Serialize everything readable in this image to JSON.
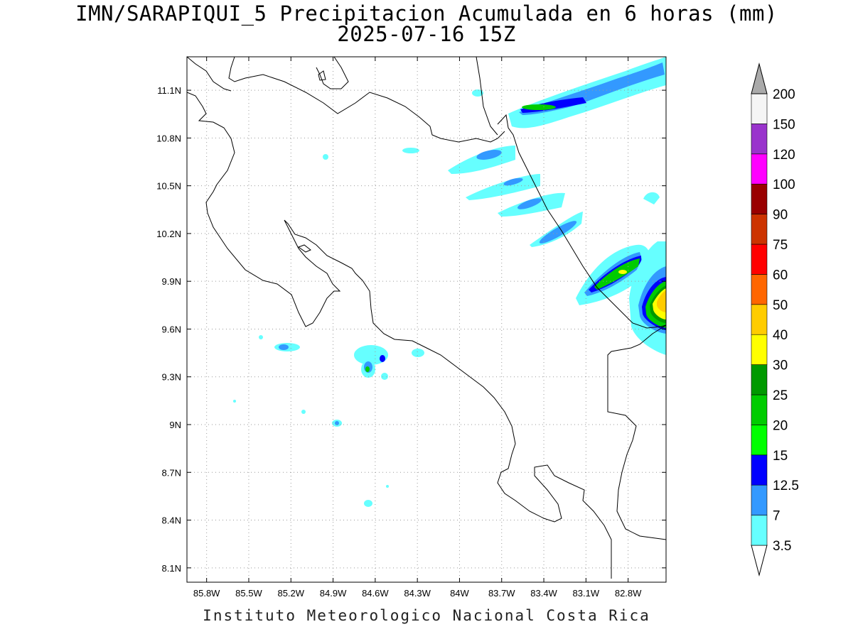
{
  "title": {
    "line1": "IMN/SARAPIQUI_5 Precipitacion Acumulada en 6 horas (mm)",
    "line2": "2025-07-16 15Z"
  },
  "footer": "Instituto Meteorologico Nacional Costa Rica",
  "map": {
    "lon_range": [
      -85.94,
      -82.53
    ],
    "lat_range": [
      8.01,
      11.31
    ],
    "lon_ticks": [
      {
        "value": -85.8,
        "label": "85.8W"
      },
      {
        "value": -85.5,
        "label": "85.5W"
      },
      {
        "value": -85.2,
        "label": "85.2W"
      },
      {
        "value": -84.9,
        "label": "84.9W"
      },
      {
        "value": -84.6,
        "label": "84.6W"
      },
      {
        "value": -84.3,
        "label": "84.3W"
      },
      {
        "value": -84.0,
        "label": "84W"
      },
      {
        "value": -83.7,
        "label": "83.7W"
      },
      {
        "value": -83.4,
        "label": "83.4W"
      },
      {
        "value": -83.1,
        "label": "83.1W"
      },
      {
        "value": -82.8,
        "label": "82.8W"
      }
    ],
    "lat_ticks": [
      {
        "value": 11.1,
        "label": "11.1N"
      },
      {
        "value": 10.8,
        "label": "10.8N"
      },
      {
        "value": 10.5,
        "label": "10.5N"
      },
      {
        "value": 10.2,
        "label": "10.2N"
      },
      {
        "value": 9.9,
        "label": "9.9N"
      },
      {
        "value": 9.6,
        "label": "9.6N"
      },
      {
        "value": 9.3,
        "label": "9.3N"
      },
      {
        "value": 9.0,
        "label": "9N"
      },
      {
        "value": 8.7,
        "label": "8.7N"
      },
      {
        "value": 8.4,
        "label": "8.4N"
      },
      {
        "value": 8.1,
        "label": "8.1N"
      }
    ],
    "grid": "dotted"
  },
  "colorbar": {
    "levels": [
      {
        "label": "3.5",
        "color": "#66ffff"
      },
      {
        "label": "7",
        "color": "#3399ff"
      },
      {
        "label": "12.5",
        "color": "#0000ff"
      },
      {
        "label": "15",
        "color": "#00ff00"
      },
      {
        "label": "20",
        "color": "#00cc00"
      },
      {
        "label": "25",
        "color": "#009900"
      },
      {
        "label": "30",
        "color": "#ffff00"
      },
      {
        "label": "40",
        "color": "#ffcc00"
      },
      {
        "label": "50",
        "color": "#ff6600"
      },
      {
        "label": "60",
        "color": "#ff0000"
      },
      {
        "label": "75",
        "color": "#cc3300"
      },
      {
        "label": "90",
        "color": "#990000"
      },
      {
        "label": "100",
        "color": "#ff00ff"
      },
      {
        "label": "120",
        "color": "#9933cc"
      },
      {
        "label": "150",
        "color": "#f5f5f5"
      },
      {
        "label": "200",
        "color": "#aaaaaa"
      }
    ]
  }
}
